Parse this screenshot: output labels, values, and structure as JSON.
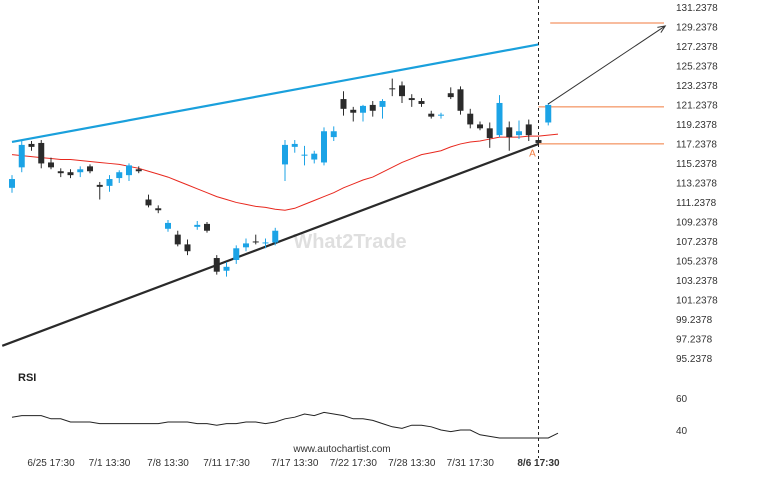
{
  "watermark": "What2Trade",
  "footer_url": "www.autochartist.com",
  "pattern_point_label": "A",
  "rsi_label": "RSI",
  "colors": {
    "bull": "#1ba3e6",
    "bear": "#2b2b2b",
    "trend_upper": "#1aa0dc",
    "trend_lower": "#2a2a2a",
    "ma": "#e8281e",
    "levels": "#f07a3c",
    "arrow": "#333333",
    "rsi": "#222222"
  },
  "chart_data": {
    "type": "candlestick",
    "y_ticks": [
      "131.2378",
      "129.2378",
      "127.2378",
      "125.2378",
      "123.2378",
      "121.2378",
      "119.2378",
      "117.2378",
      "115.2378",
      "113.2378",
      "111.2378",
      "109.2378",
      "107.2378",
      "105.2378",
      "103.2378",
      "101.2378",
      "99.2378",
      "97.2378",
      "95.2378"
    ],
    "ylim": [
      93.2,
      131.24
    ],
    "x_tick_labels": [
      "6/25 17:30",
      "7/1 13:30",
      "7/8 13:30",
      "7/11 17:30",
      "7/17 13:30",
      "7/22 17:30",
      "7/28 13:30",
      "7/31 17:30",
      "8/6 17:30"
    ],
    "x_tick_candle_index": [
      4,
      10,
      16,
      22,
      29,
      35,
      41,
      47,
      54
    ],
    "current_time_index": 54,
    "candles": [
      {
        "o": 112.7,
        "h": 114.0,
        "l": 112.2,
        "c": 113.6
      },
      {
        "o": 114.8,
        "h": 117.6,
        "l": 114.3,
        "c": 117.1
      },
      {
        "o": 117.2,
        "h": 117.5,
        "l": 116.5,
        "c": 116.9
      },
      {
        "o": 117.3,
        "h": 117.6,
        "l": 114.7,
        "c": 115.2
      },
      {
        "o": 115.3,
        "h": 115.8,
        "l": 114.6,
        "c": 114.8
      },
      {
        "o": 114.4,
        "h": 114.7,
        "l": 113.8,
        "c": 114.2
      },
      {
        "o": 114.3,
        "h": 114.6,
        "l": 113.7,
        "c": 114.0
      },
      {
        "o": 114.3,
        "h": 114.9,
        "l": 113.8,
        "c": 114.6
      },
      {
        "o": 114.9,
        "h": 115.1,
        "l": 114.2,
        "c": 114.4
      },
      {
        "o": 113.0,
        "h": 113.3,
        "l": 111.5,
        "c": 112.8
      },
      {
        "o": 112.9,
        "h": 114.0,
        "l": 112.3,
        "c": 113.6
      },
      {
        "o": 113.7,
        "h": 114.5,
        "l": 113.2,
        "c": 114.3
      },
      {
        "o": 114.0,
        "h": 115.2,
        "l": 113.4,
        "c": 115.0
      },
      {
        "o": 114.6,
        "h": 114.9,
        "l": 114.2,
        "c": 114.4
      },
      {
        "o": 111.5,
        "h": 112.0,
        "l": 110.7,
        "c": 110.9
      },
      {
        "o": 110.6,
        "h": 110.9,
        "l": 110.1,
        "c": 110.4
      },
      {
        "o": 108.5,
        "h": 109.4,
        "l": 108.2,
        "c": 109.1
      },
      {
        "o": 107.9,
        "h": 108.3,
        "l": 106.7,
        "c": 106.9
      },
      {
        "o": 106.9,
        "h": 107.4,
        "l": 105.8,
        "c": 106.2
      },
      {
        "o": 108.7,
        "h": 109.3,
        "l": 108.4,
        "c": 108.9
      },
      {
        "o": 109.0,
        "h": 109.2,
        "l": 108.1,
        "c": 108.3
      },
      {
        "o": 105.5,
        "h": 105.8,
        "l": 103.8,
        "c": 104.1
      },
      {
        "o": 104.2,
        "h": 105.1,
        "l": 103.6,
        "c": 104.6
      },
      {
        "o": 105.3,
        "h": 106.8,
        "l": 104.9,
        "c": 106.5
      },
      {
        "o": 106.6,
        "h": 107.5,
        "l": 106.2,
        "c": 107.0
      },
      {
        "o": 107.2,
        "h": 107.9,
        "l": 106.9,
        "c": 107.1
      },
      {
        "o": 107.0,
        "h": 107.5,
        "l": 106.5,
        "c": 107.1
      },
      {
        "o": 107.1,
        "h": 108.6,
        "l": 106.8,
        "c": 108.3
      },
      {
        "o": 115.1,
        "h": 117.6,
        "l": 113.4,
        "c": 117.1
      },
      {
        "o": 116.9,
        "h": 117.6,
        "l": 116.3,
        "c": 117.2
      },
      {
        "o": 116.0,
        "h": 117.0,
        "l": 115.0,
        "c": 116.1
      },
      {
        "o": 115.6,
        "h": 116.5,
        "l": 115.2,
        "c": 116.2
      },
      {
        "o": 115.3,
        "h": 118.9,
        "l": 115.0,
        "c": 118.5
      },
      {
        "o": 117.9,
        "h": 119.0,
        "l": 117.5,
        "c": 118.5
      },
      {
        "o": 121.8,
        "h": 122.6,
        "l": 120.1,
        "c": 120.8
      },
      {
        "o": 120.7,
        "h": 121.0,
        "l": 119.5,
        "c": 120.4
      },
      {
        "o": 120.4,
        "h": 121.2,
        "l": 119.5,
        "c": 121.1
      },
      {
        "o": 121.2,
        "h": 121.6,
        "l": 120.0,
        "c": 120.6
      },
      {
        "o": 121.0,
        "h": 121.8,
        "l": 119.8,
        "c": 121.6
      },
      {
        "o": 122.9,
        "h": 123.9,
        "l": 122.1,
        "c": 122.8
      },
      {
        "o": 123.2,
        "h": 123.6,
        "l": 121.4,
        "c": 122.1
      },
      {
        "o": 121.9,
        "h": 122.3,
        "l": 121.0,
        "c": 121.7
      },
      {
        "o": 121.6,
        "h": 121.9,
        "l": 121.0,
        "c": 121.3
      },
      {
        "o": 120.3,
        "h": 120.6,
        "l": 119.8,
        "c": 120.0
      },
      {
        "o": 120.1,
        "h": 120.4,
        "l": 119.8,
        "c": 120.2
      },
      {
        "o": 122.4,
        "h": 123.0,
        "l": 121.8,
        "c": 122.0
      },
      {
        "o": 122.8,
        "h": 123.1,
        "l": 120.2,
        "c": 120.6
      },
      {
        "o": 120.3,
        "h": 120.8,
        "l": 118.8,
        "c": 119.2
      },
      {
        "o": 119.2,
        "h": 119.5,
        "l": 118.6,
        "c": 118.8
      },
      {
        "o": 118.8,
        "h": 119.4,
        "l": 116.8,
        "c": 117.8
      },
      {
        "o": 118.1,
        "h": 122.2,
        "l": 117.9,
        "c": 121.4
      },
      {
        "o": 118.9,
        "h": 119.5,
        "l": 116.5,
        "c": 117.9
      },
      {
        "o": 118.1,
        "h": 119.6,
        "l": 117.7,
        "c": 118.5
      },
      {
        "o": 119.2,
        "h": 119.7,
        "l": 117.5,
        "c": 118.1
      },
      {
        "o": 117.6,
        "h": 117.9,
        "l": 117.2,
        "c": 117.3
      },
      {
        "o": 119.4,
        "h": 121.4,
        "l": 119.1,
        "c": 121.2
      }
    ],
    "moving_average": [
      116.1,
      116.0,
      115.9,
      115.8,
      115.7,
      115.6,
      115.6,
      115.5,
      115.4,
      115.3,
      115.2,
      115.1,
      114.9,
      114.7,
      114.4,
      114.1,
      113.8,
      113.4,
      113.0,
      112.6,
      112.2,
      111.8,
      111.5,
      111.2,
      111.0,
      110.8,
      110.7,
      110.5,
      110.4,
      110.6,
      111.0,
      111.4,
      111.8,
      112.2,
      112.7,
      113.1,
      113.5,
      113.8,
      114.3,
      114.8,
      115.3,
      115.7,
      116.1,
      116.3,
      116.5,
      116.9,
      117.2,
      117.4,
      117.5,
      117.7,
      117.9,
      117.9,
      117.9,
      118.0,
      118.0,
      118.1,
      118.2
    ],
    "upper_trendline": {
      "x": [
        0,
        54
      ],
      "y": [
        117.4,
        127.4
      ]
    },
    "lower_trendline": {
      "x": [
        -1,
        54
      ],
      "y": [
        96.5,
        117.2
      ]
    },
    "levels": [
      {
        "value": 129.6,
        "from_index": 55.2
      },
      {
        "value": 121.0,
        "from_index": 54
      },
      {
        "value": 117.2,
        "from_index": 54
      }
    ],
    "forecast_arrow": {
      "from": {
        "x": 55.0,
        "y": 121.3
      },
      "to": {
        "x": 67.0,
        "y": 129.3
      }
    },
    "pattern_point_value": 116.3,
    "rsi": {
      "y_ticks": [
        "60",
        "40"
      ],
      "ylim": [
        30,
        70
      ],
      "values": [
        48,
        49,
        49,
        49,
        47,
        47,
        45,
        45,
        45,
        44,
        44,
        44,
        44,
        44,
        44,
        44,
        45,
        45,
        45,
        44,
        44,
        43,
        44,
        44,
        45,
        45,
        44,
        45,
        47,
        48,
        50,
        49,
        51,
        50,
        49,
        47,
        47,
        46,
        44,
        42,
        41,
        43,
        43,
        42,
        40,
        39,
        40,
        40,
        37,
        36,
        35,
        35,
        35,
        35,
        35,
        35,
        38
      ]
    }
  }
}
